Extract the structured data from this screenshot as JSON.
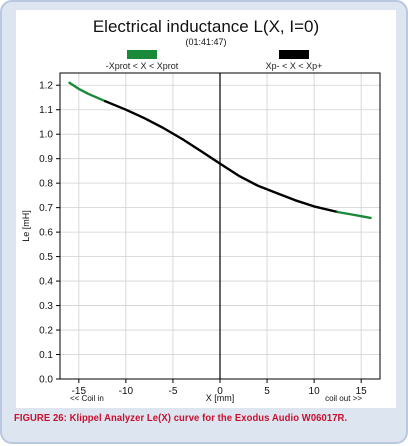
{
  "chart_data": {
    "type": "line",
    "title": "Electrical inductance L(X, I=0)",
    "subtitle": "(01:41:47)",
    "xlabel": "X [mm]",
    "ylabel": "Le [mH]",
    "xlim": [
      -17,
      17
    ],
    "ylim": [
      0.0,
      1.25
    ],
    "x_ticks": [
      -15,
      -10,
      -5,
      0,
      5,
      10,
      15
    ],
    "y_ticks": [
      0.0,
      0.1,
      0.2,
      0.3,
      0.4,
      0.5,
      0.6,
      0.7,
      0.8,
      0.9,
      1.0,
      1.1,
      1.2
    ],
    "x_tick_labels": [
      "-15",
      "-10",
      "-5",
      "0",
      "5",
      "10",
      "15"
    ],
    "y_tick_labels": [
      "0.0",
      "0.1",
      "0.2",
      "0.3",
      "0.4",
      "0.5",
      "0.6",
      "0.7",
      "0.8",
      "0.9",
      "1.0",
      "1.1",
      "1.2"
    ],
    "grid": true,
    "series": [
      {
        "name": "-Xprot < X < Xprot",
        "color": "#1a8a3a",
        "x": [
          -16,
          -15,
          -14,
          -12.2
        ],
        "values": [
          1.21,
          1.185,
          1.165,
          1.135
        ]
      },
      {
        "name": "Xp- < X < Xp+",
        "color": "#000000",
        "x": [
          -12.2,
          -10,
          -8,
          -6,
          -4,
          -2,
          0,
          2,
          4,
          6,
          8,
          10,
          12.5
        ],
        "values": [
          1.135,
          1.1,
          1.065,
          1.025,
          0.98,
          0.93,
          0.88,
          0.83,
          0.79,
          0.76,
          0.73,
          0.705,
          0.682
        ]
      },
      {
        "name": "-Xprot < X < Xprot",
        "color": "#1a8a3a",
        "x": [
          12.5,
          14,
          15,
          16
        ],
        "values": [
          0.682,
          0.672,
          0.665,
          0.658
        ]
      }
    ],
    "legend": [
      {
        "label": "-Xprot < X < Xprot",
        "color": "#1a8a3a",
        "position": "top-left"
      },
      {
        "label": "Xp- < X < Xp+",
        "color": "#000000",
        "position": "top-right"
      }
    ],
    "annotations": {
      "left": "<< Coil in",
      "right": "coil out >>"
    }
  },
  "caption": "FIGURE 26: Klippel Analyzer Le(X) curve for the Exodus Audio W06017R."
}
